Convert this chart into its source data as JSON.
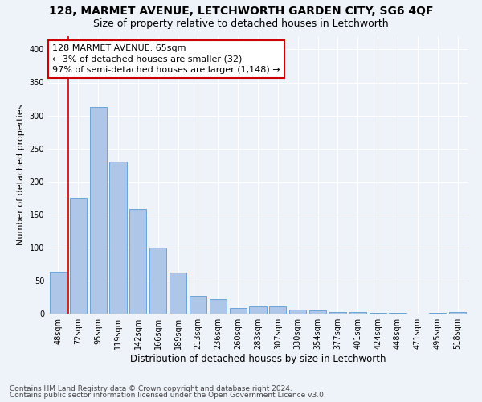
{
  "title": "128, MARMET AVENUE, LETCHWORTH GARDEN CITY, SG6 4QF",
  "subtitle": "Size of property relative to detached houses in Letchworth",
  "xlabel": "Distribution of detached houses by size in Letchworth",
  "ylabel": "Number of detached properties",
  "categories": [
    "48sqm",
    "72sqm",
    "95sqm",
    "119sqm",
    "142sqm",
    "166sqm",
    "189sqm",
    "213sqm",
    "236sqm",
    "260sqm",
    "283sqm",
    "307sqm",
    "330sqm",
    "354sqm",
    "377sqm",
    "401sqm",
    "424sqm",
    "448sqm",
    "471sqm",
    "495sqm",
    "518sqm"
  ],
  "values": [
    63,
    175,
    313,
    230,
    158,
    100,
    62,
    27,
    22,
    9,
    11,
    11,
    6,
    5,
    3,
    2,
    1,
    1,
    0,
    1,
    3
  ],
  "bar_color": "#aec6e8",
  "bar_edge_color": "#5b9bd5",
  "property_label": "128 MARMET AVENUE: 65sqm",
  "annotation_line1": "← 3% of detached houses are smaller (32)",
  "annotation_line2": "97% of semi-detached houses are larger (1,148) →",
  "annotation_box_color": "#ffffff",
  "annotation_box_edge_color": "#cc0000",
  "red_line_x": 0.5,
  "ylim": [
    0,
    420
  ],
  "yticks": [
    0,
    50,
    100,
    150,
    200,
    250,
    300,
    350,
    400
  ],
  "footer1": "Contains HM Land Registry data © Crown copyright and database right 2024.",
  "footer2": "Contains public sector information licensed under the Open Government Licence v3.0.",
  "background_color": "#eef2f9",
  "grid_color": "#ffffff",
  "title_fontsize": 10,
  "subtitle_fontsize": 9,
  "xlabel_fontsize": 8.5,
  "ylabel_fontsize": 8,
  "tick_fontsize": 7,
  "annot_fontsize": 8,
  "footer_fontsize": 6.5
}
